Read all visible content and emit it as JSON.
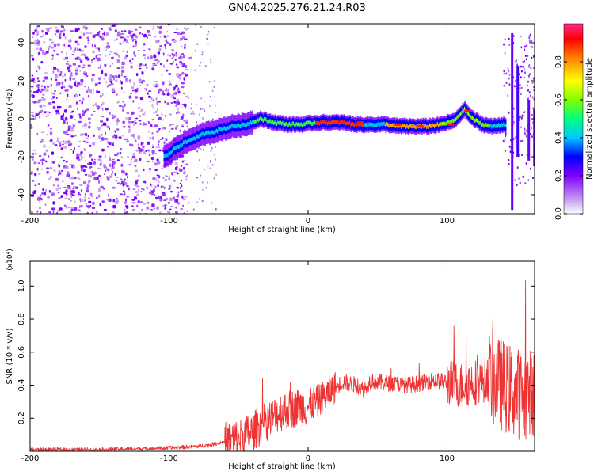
{
  "title": "GN04.2025.276.21.24.R03",
  "chart_data": [
    {
      "type": "heatmap",
      "name": "spectrogram",
      "title": "GN04.2025.276.21.24.R03",
      "xlabel": "Height of straight line (km)",
      "ylabel": "Frequency (Hz)",
      "xlim": [
        -200,
        163
      ],
      "ylim": [
        -50,
        50
      ],
      "xticks": [
        "-200",
        "-100",
        "0",
        "100"
      ],
      "yticks": [
        "-40",
        "-20",
        "0",
        "20",
        "40"
      ],
      "ridge": {
        "x": [
          -103,
          -95,
          -85,
          -75,
          -65,
          -55,
          -45,
          -35,
          -25,
          -15,
          -5,
          5,
          15,
          25,
          35,
          45,
          55,
          65,
          75,
          85,
          95,
          105,
          112,
          118,
          125,
          132,
          140
        ],
        "freq": [
          -20,
          -15,
          -11,
          -8,
          -6,
          -4,
          -3,
          0,
          -2,
          -3,
          -3,
          -2,
          -2,
          -2,
          -3,
          -3,
          -3,
          -4,
          -4,
          -4,
          -3,
          -1,
          5,
          0,
          -3,
          -4,
          -3
        ]
      },
      "colorbar": {
        "label": "Normalized spectral amplitude",
        "range": [
          0,
          1
        ],
        "ticks": [
          "0.0",
          "0.2",
          "0.4",
          "0.6",
          "0.8"
        ]
      }
    },
    {
      "type": "line",
      "name": "snr",
      "xlabel": "Height of straight line (km)",
      "ylabel": "SNR (10 * v/v)",
      "scale_note": "(x10⁴)",
      "xlim": [
        -200,
        163
      ],
      "ylim": [
        0,
        1.15
      ],
      "xticks": [
        "-200",
        "-100",
        "0",
        "100"
      ],
      "yticks": [
        "0.2",
        "0.4",
        "0.6",
        "0.8",
        "1.0"
      ],
      "color": "#ee3333",
      "envelope": {
        "x": [
          -200,
          -150,
          -100,
          -80,
          -70,
          -60,
          -50,
          -40,
          -30,
          -20,
          -10,
          0,
          10,
          20,
          25,
          35,
          40,
          45,
          50,
          60,
          70,
          80,
          90,
          100,
          110,
          120,
          130,
          140,
          150,
          163
        ],
        "y": [
          0.01,
          0.01,
          0.02,
          0.03,
          0.04,
          0.06,
          0.08,
          0.12,
          0.18,
          0.24,
          0.26,
          0.27,
          0.32,
          0.39,
          0.42,
          0.4,
          0.37,
          0.43,
          0.42,
          0.41,
          0.4,
          0.41,
          0.43,
          0.42,
          0.4,
          0.42,
          0.44,
          0.4,
          0.35,
          0.34
        ]
      }
    }
  ]
}
